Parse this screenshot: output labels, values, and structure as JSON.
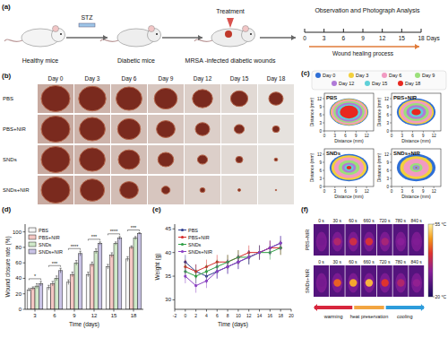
{
  "panel_labels": [
    "(a)",
    "(b)",
    "(c)",
    "(d)",
    "(e)",
    "(f)"
  ],
  "schematic": {
    "stages": [
      "Healthy mice",
      "Diabetic mice",
      "MRSA -infected diabetic wounds"
    ],
    "steps": [
      "STZ",
      "Treatment"
    ],
    "timeline_title": "Observation and Photograph Analysis",
    "timeline_days": [
      0,
      3,
      6,
      9,
      12,
      15,
      18
    ],
    "timeline_unit": "Days",
    "timeline_caption": "Wound healing process"
  },
  "photos": {
    "days": [
      "Day 0",
      "Day 3",
      "Day 6",
      "Day 9",
      "Day 12",
      "Day 15",
      "Day 18"
    ],
    "groups": [
      "PBS",
      "PBS+NIR",
      "SNDs",
      "SNDs+NIR"
    ],
    "wound_diameter_mm": [
      [
        10,
        9.5,
        9,
        8,
        7,
        6,
        5
      ],
      [
        10,
        9,
        8,
        6.5,
        5,
        3.5,
        2.5
      ],
      [
        10,
        9,
        7.5,
        5.5,
        3.5,
        2.5,
        1.2
      ],
      [
        10,
        8.5,
        6.5,
        3,
        1.8,
        1,
        0.5
      ]
    ]
  },
  "contours": {
    "legend": [
      "Day 0",
      "Day 3",
      "Day 6",
      "Day 9",
      "Day 12",
      "Day 15",
      "Day 18"
    ],
    "colors": [
      "#2f6fd6",
      "#f3d03c",
      "#f29ac2",
      "#9be07a",
      "#b07ad8",
      "#5fd0d8",
      "#e8281f"
    ],
    "xlabel": "Distance (mm)",
    "ylabel": "Distance (mm)",
    "xlim": [
      0,
      14
    ],
    "ylim": [
      0,
      14
    ],
    "xticks": [
      0,
      3,
      6,
      9,
      12
    ],
    "yticks": [
      0,
      3,
      6,
      9,
      12
    ],
    "groups": [
      {
        "name": "PBS",
        "radii_mm": [
          5.5,
          5.3,
          5.0,
          4.4,
          3.8,
          3.2,
          2.6
        ]
      },
      {
        "name": "PBS+NIR",
        "radii_mm": [
          5.5,
          5.0,
          4.5,
          3.6,
          2.8,
          2.0,
          1.3
        ]
      },
      {
        "name": "SNDs",
        "radii_mm": [
          5.5,
          5.0,
          4.2,
          3.0,
          2.0,
          1.3,
          0.7
        ]
      },
      {
        "name": "SNDs+NIR",
        "radii_mm": [
          5.5,
          4.6,
          3.6,
          1.8,
          1.0,
          0.6,
          0.3
        ]
      }
    ]
  },
  "chart_data": [
    {
      "type": "bar",
      "xlabel": "Time (days)",
      "ylabel": "Wound closure rate (%)",
      "categories": [
        3,
        6,
        9,
        12,
        15,
        18
      ],
      "ylim": [
        0,
        110
      ],
      "yticks": [
        0,
        20,
        40,
        60,
        80,
        100
      ],
      "grid": false,
      "legend": "upper left",
      "annotations": [
        "*",
        "***",
        "****",
        "***",
        "****",
        "***"
      ],
      "series": [
        {
          "name": "PBS",
          "color": "#f5f5f5",
          "values": [
            25,
            28,
            35,
            45,
            55,
            65
          ],
          "errors": [
            2,
            3,
            3,
            3,
            3,
            3
          ]
        },
        {
          "name": "PBS+NIR",
          "color": "#f4c7c3",
          "values": [
            27,
            33,
            45,
            58,
            70,
            80
          ],
          "errors": [
            2,
            3,
            3,
            3,
            3,
            2
          ]
        },
        {
          "name": "SNDs",
          "color": "#cfe8c8",
          "values": [
            30,
            40,
            60,
            75,
            85,
            92
          ],
          "errors": [
            3,
            3,
            3,
            3,
            2,
            2
          ]
        },
        {
          "name": "SNDs+NIR",
          "color": "#c9c3e6",
          "values": [
            33,
            50,
            72,
            85,
            92,
            98
          ],
          "errors": [
            3,
            3,
            3,
            2,
            2,
            1
          ]
        }
      ]
    },
    {
      "type": "line",
      "xlabel": "Time (days)",
      "ylabel": "Weight (g)",
      "x": [
        0,
        2,
        4,
        6,
        8,
        10,
        12,
        14,
        16,
        18
      ],
      "xlim": [
        -2,
        20
      ],
      "xticks": [
        -2,
        0,
        2,
        4,
        6,
        8,
        10,
        12,
        14,
        16,
        18,
        20
      ],
      "ylim": [
        28,
        46
      ],
      "yticks": [
        30,
        35,
        40,
        45
      ],
      "grid": false,
      "legend": "upper left",
      "marker": "circle",
      "series": [
        {
          "name": "PBS",
          "color": "#2b3a8c",
          "values": [
            38,
            36,
            35,
            36,
            37,
            38,
            39,
            40,
            41,
            42
          ],
          "errors": [
            1.5,
            1.5,
            1.5,
            1.5,
            1.5,
            1.5,
            1.5,
            1.5,
            1.5,
            1.5
          ]
        },
        {
          "name": "PBS+NIR",
          "color": "#d62828",
          "values": [
            37,
            36,
            37,
            38,
            38,
            39,
            40,
            40,
            41,
            41
          ],
          "errors": [
            1.5,
            1.5,
            1.5,
            1.5,
            1.5,
            1.5,
            1.5,
            1.5,
            1.5,
            1.5
          ]
        },
        {
          "name": "SNDs",
          "color": "#2e9e44",
          "values": [
            36,
            35,
            36,
            37,
            38,
            39,
            39,
            40,
            40,
            41
          ],
          "errors": [
            1.5,
            1.5,
            1.5,
            1.5,
            1.5,
            1.5,
            1.5,
            1.5,
            1.5,
            1.5
          ]
        },
        {
          "name": "SNDs+NIR",
          "color": "#8a3fc2",
          "values": [
            35,
            33,
            34,
            36,
            37,
            38,
            39,
            40,
            41,
            42
          ],
          "errors": [
            1.5,
            1.5,
            1.5,
            1.5,
            1.5,
            1.5,
            1.5,
            1.5,
            1.5,
            1.5
          ]
        }
      ]
    }
  ],
  "thermal": {
    "groups": [
      "PBS+NIR",
      "SNDs+NIR"
    ],
    "times": [
      "0 s",
      "30 s",
      "60 s",
      "660 s",
      "720 s",
      "780 s",
      "840 s"
    ],
    "temperatures": [
      [
        30,
        36,
        39,
        40,
        35,
        32,
        31
      ],
      [
        30,
        44,
        49,
        50,
        41,
        36,
        33
      ]
    ],
    "colorbar": {
      "range": [
        20,
        55
      ],
      "ticks": [
        {
          "value": 55,
          "label": "55 °C"
        },
        {
          "value": 20,
          "label": "20 °C"
        }
      ]
    },
    "phases": [
      "warming",
      "heat preservation",
      "cooling"
    ]
  }
}
